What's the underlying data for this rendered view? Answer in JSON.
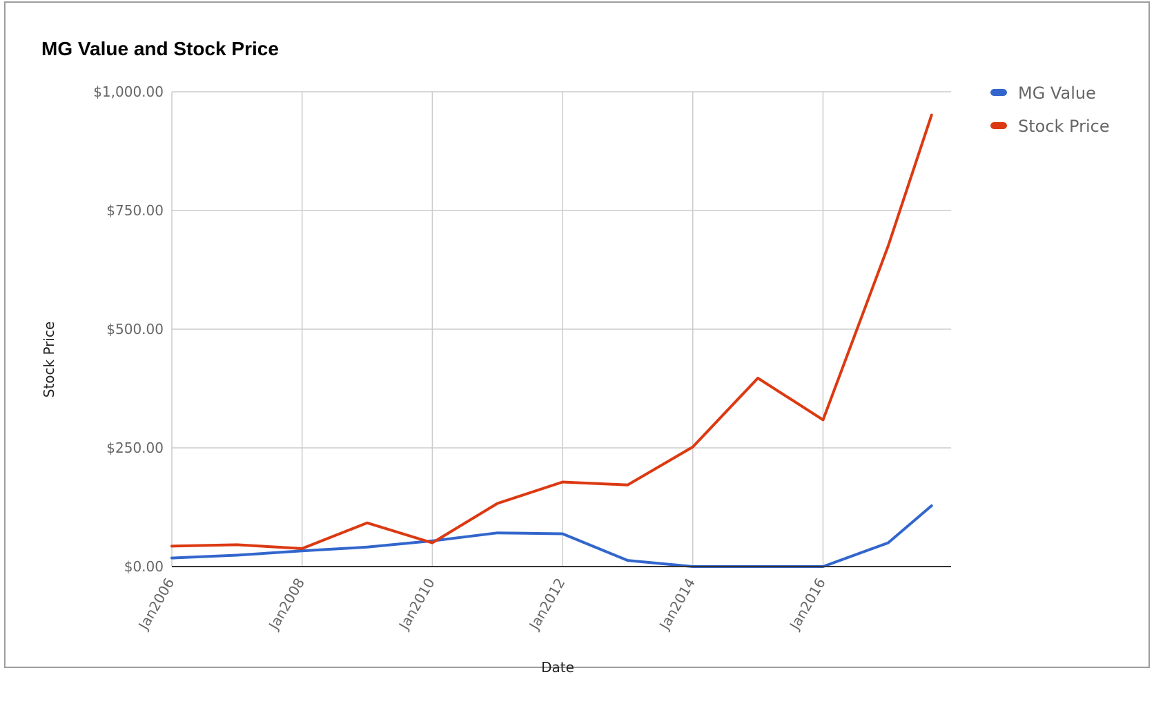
{
  "chart_data": {
    "type": "line",
    "title": "MG Value and Stock Price",
    "xlabel": "Date",
    "ylabel": "Stock Price",
    "x": [
      "2006-01",
      "2007-01",
      "2008-01",
      "2009-01",
      "2010-01",
      "2011-01",
      "2012-01",
      "2013-01",
      "2014-01",
      "2015-01",
      "2016-01",
      "2017-01",
      "2018-01"
    ],
    "x_ticks": [
      "Jan2006",
      "Jan2008",
      "Jan2010",
      "Jan2012",
      "Jan2014",
      "Jan2016"
    ],
    "y_ticks": [
      "$0.00",
      "$250.00",
      "$500.00",
      "$750.00",
      "$1,000.00"
    ],
    "ylim": [
      0,
      1000
    ],
    "xlim": [
      "2006-01",
      "2017-09"
    ],
    "grid": true,
    "legend_position": "top-right",
    "series": [
      {
        "name": "MG Value",
        "color": "#3366cc",
        "dates": [
          "2006-01",
          "2007-01",
          "2008-01",
          "2009-01",
          "2010-01",
          "2011-01",
          "2012-01",
          "2013-01",
          "2014-01",
          "2015-01",
          "2016-01",
          "2017-01",
          "2017-09"
        ],
        "values": [
          18,
          24,
          33,
          41,
          54,
          71,
          69,
          13,
          0,
          0,
          0,
          50,
          128
        ]
      },
      {
        "name": "Stock Price",
        "color": "#dc3912",
        "dates": [
          "2006-01",
          "2007-01",
          "2008-01",
          "2009-01",
          "2010-01",
          "2011-01",
          "2012-01",
          "2013-01",
          "2014-01",
          "2015-01",
          "2016-01",
          "2017-01",
          "2017-09"
        ],
        "values": [
          43,
          46,
          38,
          92,
          50,
          133,
          178,
          172,
          252,
          397,
          309,
          675,
          951
        ]
      }
    ]
  }
}
